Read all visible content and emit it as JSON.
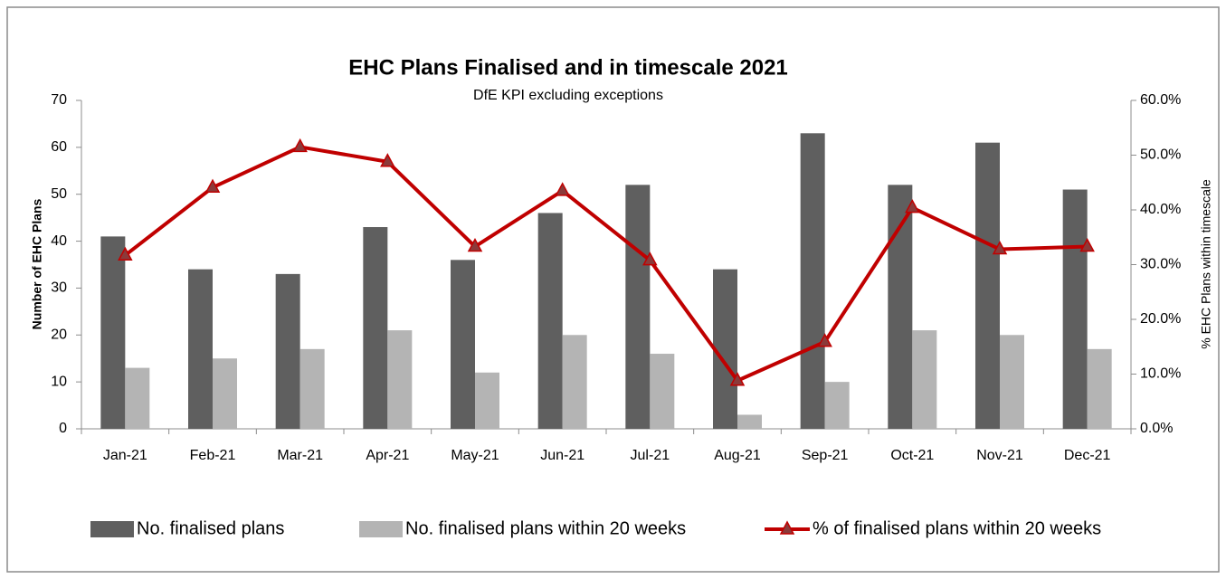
{
  "chart_data": {
    "type": "bar",
    "title": "EHC Plans Finalised and in timescale 2021",
    "subtitle": "DfE KPI excluding exceptions",
    "y_label": "Number of EHC Plans",
    "y2_label": "% EHC Plans within timescale",
    "categories": [
      "Jan-21",
      "Feb-21",
      "Mar-21",
      "Apr-21",
      "May-21",
      "Jun-21",
      "Jul-21",
      "Aug-21",
      "Sep-21",
      "Oct-21",
      "Nov-21",
      "Dec-21"
    ],
    "series": [
      {
        "name": "No. finalised plans",
        "type": "bar",
        "color": "#5f5f5f",
        "values": [
          41,
          34,
          33,
          43,
          36,
          46,
          52,
          34,
          63,
          52,
          61,
          51
        ]
      },
      {
        "name": "No. finalised plans within 20 weeks",
        "type": "bar",
        "color": "#b4b4b4",
        "values": [
          13,
          15,
          17,
          21,
          12,
          20,
          16,
          3,
          10,
          21,
          20,
          17
        ]
      },
      {
        "name": "% of finalised plans within 20 weeks",
        "type": "line",
        "axis": "y2",
        "color": "#c00000",
        "marker_color": "#8b3a3a",
        "values": [
          31.7,
          44.1,
          51.5,
          48.8,
          33.3,
          43.5,
          30.8,
          8.8,
          15.9,
          40.4,
          32.8,
          33.3
        ]
      }
    ],
    "ylim": [
      0,
      70
    ],
    "yticks": [
      0,
      10,
      20,
      30,
      40,
      50,
      60,
      70
    ],
    "y2lim": [
      0,
      60
    ],
    "y2ticks": [
      {
        "value": 0,
        "label": "0.0%"
      },
      {
        "value": 10,
        "label": "10.0%"
      },
      {
        "value": 20,
        "label": "20.0%"
      },
      {
        "value": 30,
        "label": "30.0%"
      },
      {
        "value": 40,
        "label": "40.0%"
      },
      {
        "value": 50,
        "label": "50.0%"
      },
      {
        "value": 60,
        "label": "60.0%"
      }
    ],
    "grid": false,
    "legend": "bottom"
  }
}
